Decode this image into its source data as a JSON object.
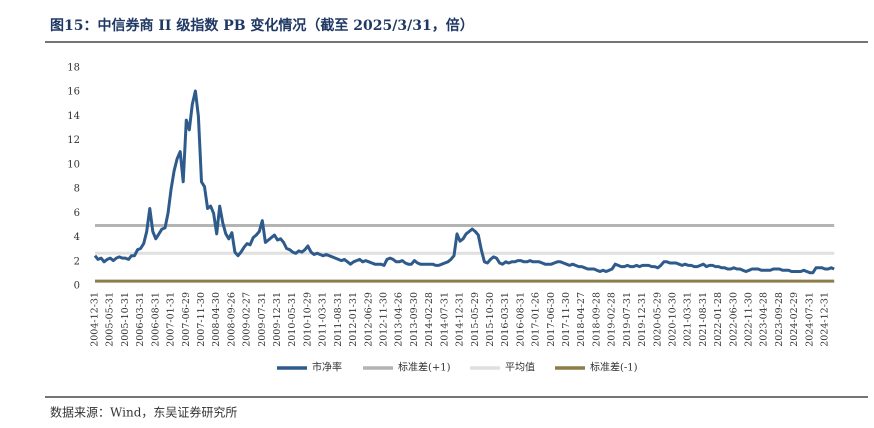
{
  "chart_data": {
    "type": "line",
    "title": "图15：中信券商 II 级指数 PB 变化情况（截至 2025/3/31，倍）",
    "source": "数据来源：Wind，东吴证券研究所",
    "categories": [
      "2004-12-31",
      null,
      null,
      null,
      null,
      "2005-05-31",
      null,
      null,
      null,
      null,
      "2005-10-31",
      null,
      null,
      null,
      null,
      "2006-03-31",
      null,
      null,
      null,
      null,
      "2006-08-31",
      null,
      null,
      null,
      null,
      "2007-01-31",
      null,
      null,
      null,
      null,
      "2007-06-29",
      null,
      null,
      null,
      null,
      "2007-11-30",
      null,
      null,
      null,
      null,
      "2008-04-30",
      null,
      null,
      null,
      null,
      "2008-09-26",
      null,
      null,
      null,
      null,
      "2009-02-27",
      null,
      null,
      null,
      null,
      "2009-07-31",
      null,
      null,
      null,
      null,
      "2009-12-31",
      null,
      null,
      null,
      null,
      "2010-05-31",
      null,
      null,
      null,
      null,
      "2010-10-29",
      null,
      null,
      null,
      null,
      "2011-03-31",
      null,
      null,
      null,
      null,
      "2011-08-31",
      null,
      null,
      null,
      null,
      "2012-01-31",
      null,
      null,
      null,
      null,
      "2012-06-29",
      null,
      null,
      null,
      null,
      "2012-11-30",
      null,
      null,
      null,
      null,
      "2013-04-26",
      null,
      null,
      null,
      null,
      "2013-09-30",
      null,
      null,
      null,
      null,
      "2014-02-28",
      null,
      null,
      null,
      null,
      "2014-07-31",
      null,
      null,
      null,
      null,
      "2014-12-31",
      null,
      null,
      null,
      null,
      "2015-05-29",
      null,
      null,
      null,
      null,
      "2015-10-30",
      null,
      null,
      null,
      null,
      "2016-03-31",
      null,
      null,
      null,
      null,
      "2016-08-31",
      null,
      null,
      null,
      null,
      "2017-01-26",
      null,
      null,
      null,
      null,
      "2017-06-30",
      null,
      null,
      null,
      null,
      "2017-11-30",
      null,
      null,
      null,
      null,
      "2018-04-27",
      null,
      null,
      null,
      null,
      "2018-09-28",
      null,
      null,
      null,
      null,
      "2019-02-28",
      null,
      null,
      null,
      null,
      "2019-07-31",
      null,
      null,
      null,
      null,
      "2019-12-31",
      null,
      null,
      null,
      null,
      "2020-05-29",
      null,
      null,
      null,
      null,
      "2020-10-30",
      null,
      null,
      null,
      null,
      "2021-03-31",
      null,
      null,
      null,
      null,
      "2021-08-31",
      null,
      null,
      null,
      null,
      "2022-01-28",
      null,
      null,
      null,
      null,
      "2022-06-30",
      null,
      null,
      null,
      null,
      "2022-11-30",
      null,
      null,
      null,
      null,
      "2023-04-28",
      null,
      null,
      null,
      null,
      "2023-09-28",
      null,
      null,
      null,
      null,
      "2024-02-29",
      null,
      null,
      null,
      null,
      "2024-07-31",
      null,
      null,
      null,
      null,
      "2024-12-31",
      null,
      null,
      null
    ],
    "series": [
      {
        "name": "市净率",
        "color": "#2e5a8c",
        "values": [
          2.5,
          2.2,
          2.3,
          2.0,
          2.2,
          2.3,
          2.1,
          2.3,
          2.4,
          2.3,
          2.3,
          2.2,
          2.5,
          2.5,
          3.0,
          3.1,
          3.5,
          4.5,
          6.4,
          4.5,
          3.9,
          4.3,
          4.7,
          4.8,
          6.0,
          8.0,
          9.5,
          10.5,
          11.1,
          8.6,
          13.7,
          12.9,
          15.0,
          16.1,
          14.0,
          8.6,
          8.2,
          6.4,
          6.6,
          6.0,
          4.3,
          6.6,
          5.2,
          4.3,
          3.9,
          4.4,
          2.8,
          2.5,
          2.8,
          3.2,
          3.5,
          3.4,
          4.0,
          4.2,
          4.5,
          5.4,
          3.6,
          3.8,
          4.0,
          4.2,
          3.8,
          3.9,
          3.6,
          3.1,
          3.0,
          2.8,
          2.7,
          2.9,
          2.8,
          3.0,
          3.3,
          2.8,
          2.6,
          2.7,
          2.6,
          2.5,
          2.6,
          2.5,
          2.4,
          2.3,
          2.2,
          2.1,
          2.2,
          2.0,
          1.8,
          2.0,
          2.1,
          2.2,
          2.0,
          2.1,
          2.0,
          1.9,
          1.8,
          1.8,
          1.8,
          1.7,
          2.2,
          2.3,
          2.2,
          2.0,
          2.0,
          2.1,
          1.9,
          1.8,
          1.8,
          2.1,
          1.9,
          1.8,
          1.8,
          1.8,
          1.8,
          1.8,
          1.7,
          1.7,
          1.8,
          1.9,
          2.0,
          2.2,
          2.5,
          4.3,
          3.7,
          3.9,
          4.3,
          4.5,
          4.7,
          4.5,
          4.2,
          3.0,
          2.0,
          1.9,
          2.2,
          2.4,
          2.3,
          1.9,
          1.8,
          2.0,
          1.9,
          2.0,
          2.0,
          2.1,
          2.1,
          2.0,
          2.0,
          2.1,
          2.0,
          2.0,
          2.0,
          1.9,
          1.8,
          1.8,
          1.8,
          1.9,
          2.0,
          2.0,
          1.9,
          1.8,
          1.7,
          1.8,
          1.7,
          1.6,
          1.6,
          1.5,
          1.4,
          1.4,
          1.4,
          1.3,
          1.2,
          1.3,
          1.2,
          1.3,
          1.4,
          1.8,
          1.7,
          1.6,
          1.6,
          1.7,
          1.6,
          1.6,
          1.7,
          1.6,
          1.7,
          1.7,
          1.7,
          1.6,
          1.6,
          1.5,
          1.7,
          2.0,
          2.0,
          1.9,
          1.9,
          1.9,
          1.8,
          1.7,
          1.8,
          1.7,
          1.7,
          1.6,
          1.6,
          1.7,
          1.8,
          1.6,
          1.7,
          1.7,
          1.6,
          1.6,
          1.5,
          1.5,
          1.4,
          1.4,
          1.5,
          1.4,
          1.4,
          1.3,
          1.2,
          1.3,
          1.4,
          1.4,
          1.4,
          1.3,
          1.3,
          1.3,
          1.3,
          1.4,
          1.4,
          1.4,
          1.3,
          1.3,
          1.3,
          1.2,
          1.2,
          1.2,
          1.2,
          1.3,
          1.2,
          1.1,
          1.1,
          1.5,
          1.5,
          1.5,
          1.4,
          1.4,
          1.5,
          1.4
        ]
      }
    ],
    "reference_lines": [
      {
        "name": "标准差(+1)",
        "color": "#b4b4b4",
        "value": 5.0
      },
      {
        "name": "平均值",
        "color": "#e0e0e0",
        "value": 2.7
      },
      {
        "name": "标准差(-1)",
        "color": "#8c7d4a",
        "value": 0.4
      }
    ],
    "ylim": [
      0,
      18
    ],
    "yticks": [
      0,
      2,
      4,
      6,
      8,
      10,
      12,
      14,
      16,
      18
    ],
    "legend": "bottom"
  }
}
